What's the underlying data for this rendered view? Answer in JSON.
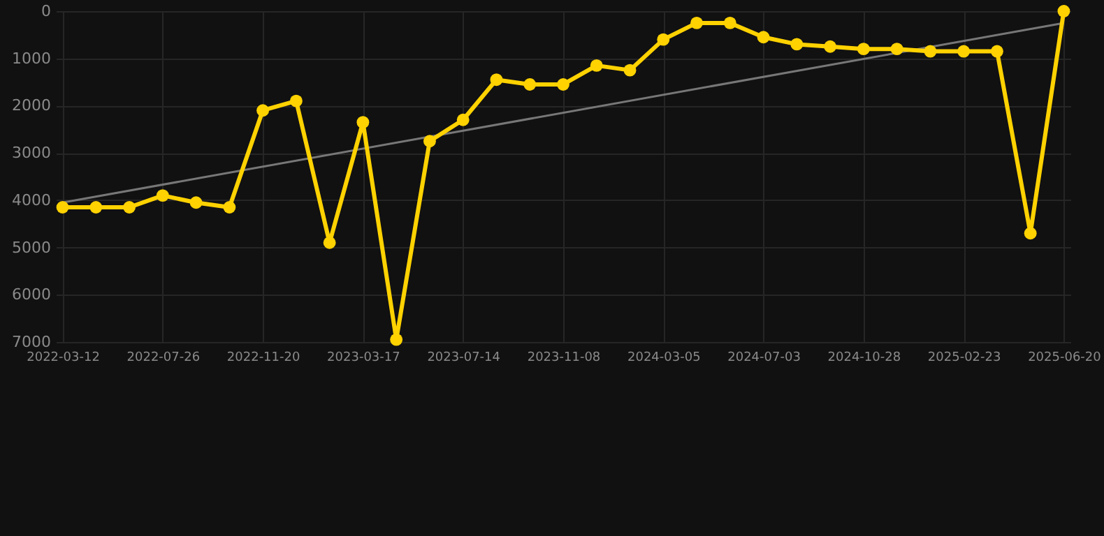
{
  "chart_data": {
    "type": "line",
    "categories": [
      "2022-03-12",
      null,
      null,
      "2022-07-26",
      null,
      null,
      "2022-11-20",
      null,
      null,
      "2023-03-17",
      null,
      null,
      "2023-07-14",
      null,
      null,
      "2023-11-08",
      null,
      null,
      "2024-03-05",
      null,
      null,
      "2024-07-03",
      null,
      null,
      "2024-10-28",
      null,
      null,
      "2025-02-23",
      null,
      null,
      "2025-06-20"
    ],
    "series": [
      {
        "color": "#ffd200",
        "marker": "circle",
        "values": [
          4150,
          4150,
          4150,
          3900,
          4050,
          4150,
          2100,
          1900,
          4900,
          2350,
          6950,
          2750,
          2300,
          1450,
          1550,
          1550,
          1150,
          1250,
          600,
          250,
          250,
          550,
          700,
          750,
          800,
          800,
          850,
          850,
          850,
          4700,
          0
        ]
      },
      {
        "type": "line",
        "color": "#777777",
        "marker": "none",
        "values": [
          4050,
          null,
          null,
          null,
          null,
          null,
          null,
          null,
          null,
          null,
          null,
          null,
          null,
          null,
          null,
          null,
          null,
          null,
          null,
          null,
          null,
          null,
          null,
          null,
          null,
          null,
          null,
          null,
          null,
          null,
          250
        ]
      }
    ],
    "ylim": [
      7000,
      0
    ],
    "yticks": [
      0,
      1000,
      2000,
      3000,
      4000,
      5000,
      6000,
      7000
    ],
    "grid": true,
    "line_style": "solid"
  }
}
